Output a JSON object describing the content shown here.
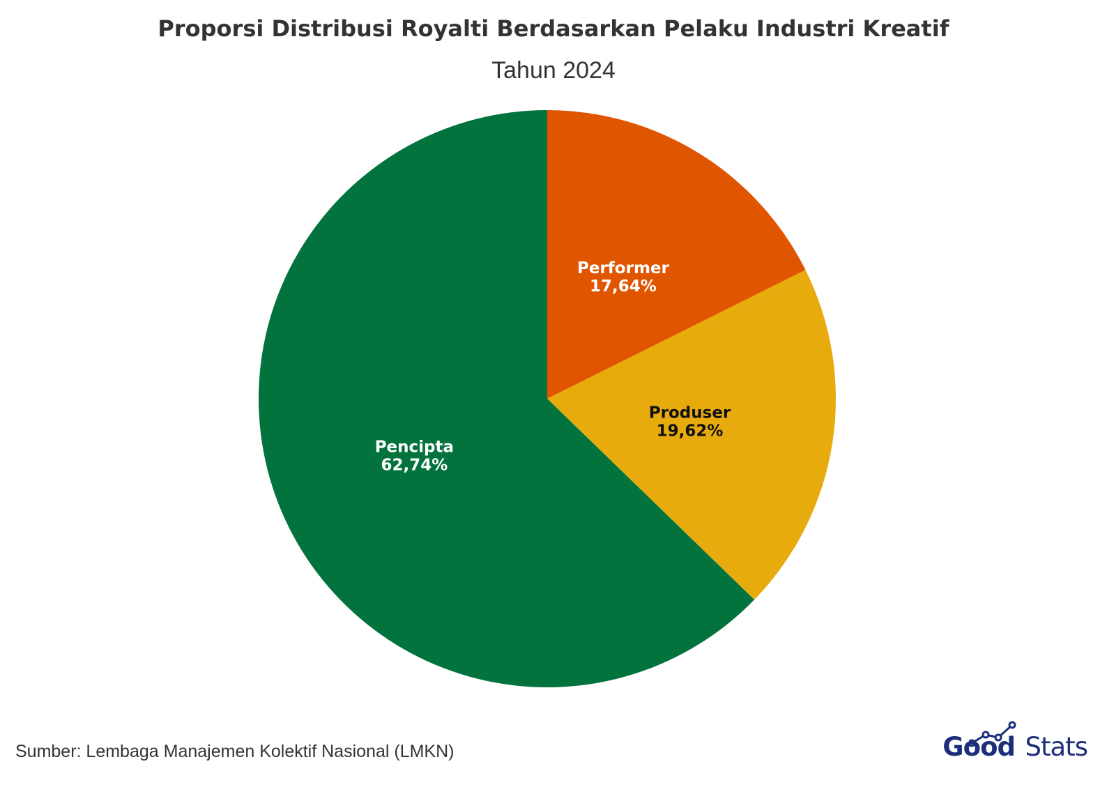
{
  "title": "Proporsi Distribusi Royalti Berdasarkan Pelaku Industri Kreatif",
  "subtitle": "Tahun 2024",
  "source": "Sumber: Lembaga Manajemen Kolektif Nasional (LMKN)",
  "logo": {
    "part1": "Good",
    "part2": "Stats",
    "color": "#1d2f7a"
  },
  "chart_data": {
    "type": "pie",
    "title": "Proporsi Distribusi Royalti Berdasarkan Pelaku Industri Kreatif",
    "subtitle": "Tahun 2024",
    "start": "12 o'clock, clockwise",
    "slices": [
      {
        "label": "Performer",
        "value": 17.64,
        "display": "17,64%",
        "color": "#e05500",
        "text_color": "#ffffff"
      },
      {
        "label": "Produser",
        "value": 19.62,
        "display": "19,62%",
        "color": "#e8ab0e",
        "text_color": "#111111"
      },
      {
        "label": "Pencipta",
        "value": 62.74,
        "display": "62,74%",
        "color": "#02733c",
        "text_color": "#ffffff"
      }
    ]
  }
}
